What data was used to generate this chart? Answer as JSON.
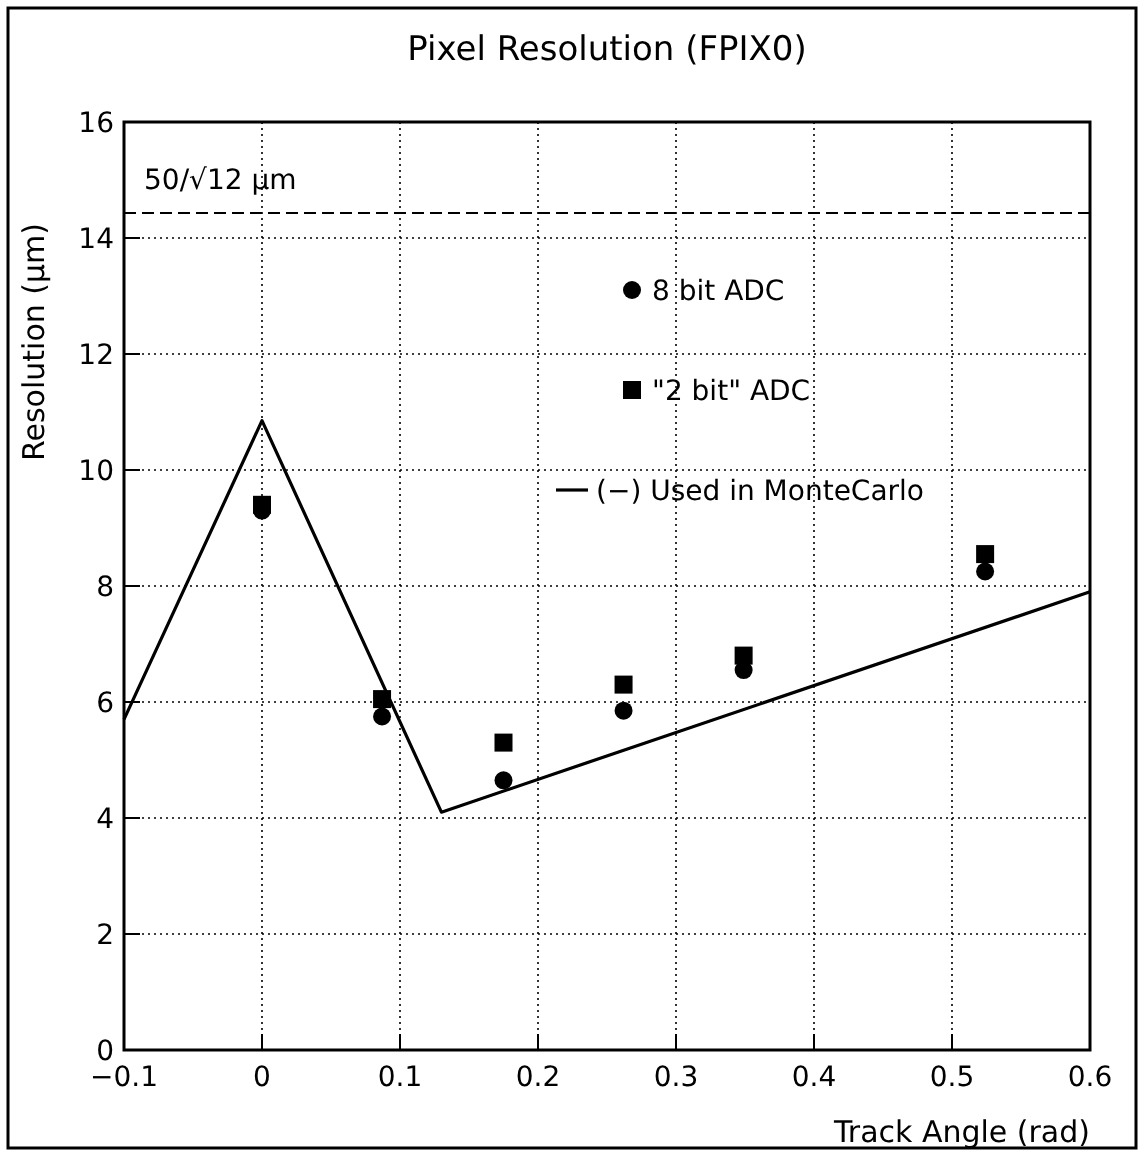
{
  "chart_data": {
    "type": "scatter",
    "title": "Pixel Resolution (FPIX0)",
    "xlabel": "Track Angle (rad)",
    "ylabel": "Resolution (μm)",
    "xlim": [
      -0.1,
      0.6
    ],
    "xticks": [
      -0.1,
      0,
      0.1,
      0.2,
      0.3,
      0.4,
      0.5,
      0.6
    ],
    "ylim": [
      0,
      16
    ],
    "yticks": [
      0,
      2,
      4,
      6,
      8,
      10,
      12,
      14,
      16
    ],
    "grid": true,
    "legend": "top right",
    "series": [
      {
        "name": "8 bit ADC",
        "color": "#000000",
        "marker": "circle",
        "x": [
          0,
          0.087,
          0.175,
          0.262,
          0.349,
          0.524
        ],
        "values": [
          9.3,
          5.75,
          4.65,
          5.85,
          6.55,
          8.25
        ]
      },
      {
        "name": "\"2 bit\" ADC",
        "color": "#000000",
        "marker": "square",
        "x": [
          0,
          0.087,
          0.175,
          0.262,
          0.349,
          0.524
        ],
        "values": [
          9.4,
          6.05,
          5.3,
          6.3,
          6.8,
          8.55
        ]
      },
      {
        "name": "(−) Used in MonteCarlo",
        "type": "line",
        "color": "#000000",
        "marker": "none",
        "line_style": "solid",
        "x": [
          -0.1,
          0,
          0.13,
          0.6
        ],
        "values": [
          5.7,
          10.85,
          4.1,
          7.9
        ]
      }
    ],
    "ref_lines": [
      {
        "axis": "y",
        "value": 14.43,
        "label": "50/√12 μm",
        "line_style": "dashed",
        "color": "#000000"
      }
    ]
  }
}
